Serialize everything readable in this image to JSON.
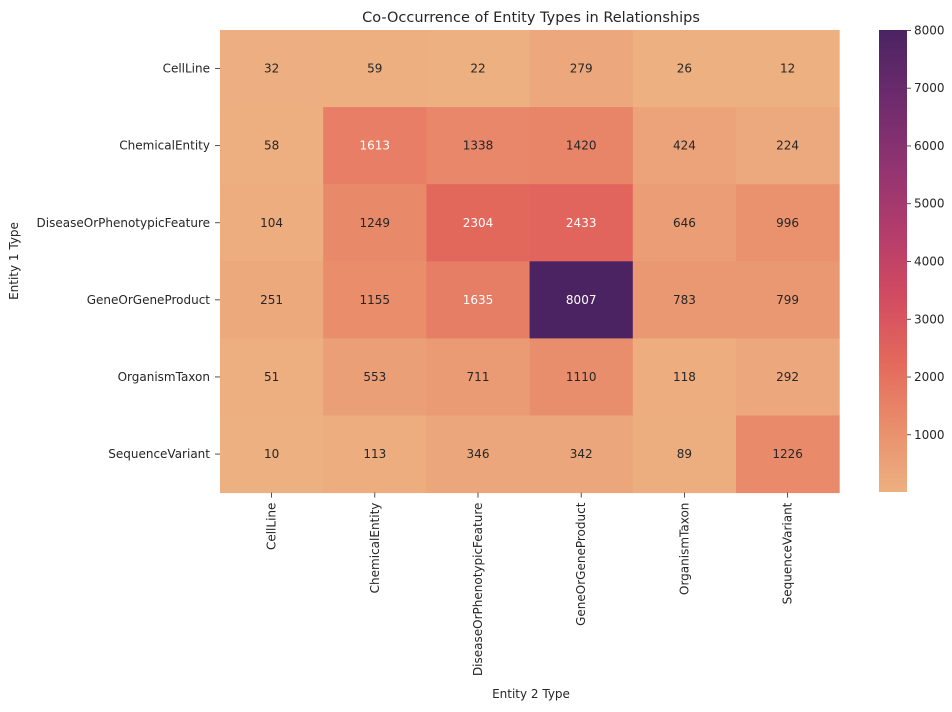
{
  "chart_data": {
    "type": "heatmap",
    "title": "Co-Occurrence of Entity Types in Relationships",
    "xlabel": "Entity 2 Type",
    "ylabel": "Entity 1 Type",
    "x_categories": [
      "CellLine",
      "ChemicalEntity",
      "DiseaseOrPhenotypicFeature",
      "GeneOrGeneProduct",
      "OrganismTaxon",
      "SequenceVariant"
    ],
    "y_categories": [
      "CellLine",
      "ChemicalEntity",
      "DiseaseOrPhenotypicFeature",
      "GeneOrGeneProduct",
      "OrganismTaxon",
      "SequenceVariant"
    ],
    "values": [
      [
        32,
        59,
        22,
        279,
        26,
        12
      ],
      [
        58,
        1613,
        1338,
        1420,
        424,
        224
      ],
      [
        104,
        1249,
        2304,
        2433,
        646,
        996
      ],
      [
        251,
        1155,
        1635,
        8007,
        783,
        799
      ],
      [
        51,
        553,
        711,
        1110,
        118,
        292
      ],
      [
        10,
        113,
        346,
        342,
        89,
        1226
      ]
    ],
    "colorbar": {
      "range": [
        10,
        8007
      ],
      "ticks": [
        1000,
        2000,
        3000,
        4000,
        5000,
        6000,
        7000,
        8000
      ],
      "colormap": "flare",
      "colors": [
        "#edb081",
        "#e98d6b",
        "#e3685c",
        "#d14a61",
        "#b13c6c",
        "#8f3371",
        "#6c2b6d",
        "#4b2362"
      ]
    },
    "grid": false
  }
}
